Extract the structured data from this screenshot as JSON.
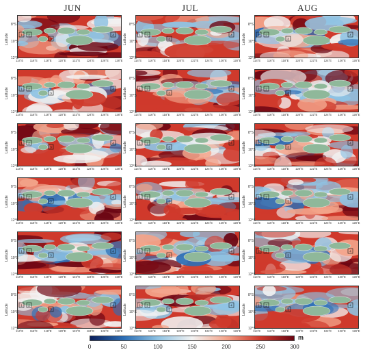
{
  "columns": [
    "JUN",
    "JUL",
    "AUG"
  ],
  "rows": 6,
  "y_axis": {
    "label": "Latitude",
    "ticks": [
      "8°S",
      "10°S",
      "12°S"
    ]
  },
  "x_axis": {
    "ticks": [
      "114°E",
      "116°E",
      "118°E",
      "120°E",
      "122°E",
      "124°E",
      "126°E",
      "128°E"
    ]
  },
  "box_labels": [
    "1",
    "2",
    "3",
    "4"
  ],
  "colorbar": {
    "ticks": [
      "0",
      "50",
      "100",
      "150",
      "200",
      "250",
      "300"
    ],
    "unit": "m",
    "colors": [
      "#0b1f5c",
      "#2d6fb6",
      "#8fc3e3",
      "#f2f2f2",
      "#f3a48a",
      "#cf3a2c",
      "#6b0513"
    ]
  },
  "land_color": "#8fb89a"
}
